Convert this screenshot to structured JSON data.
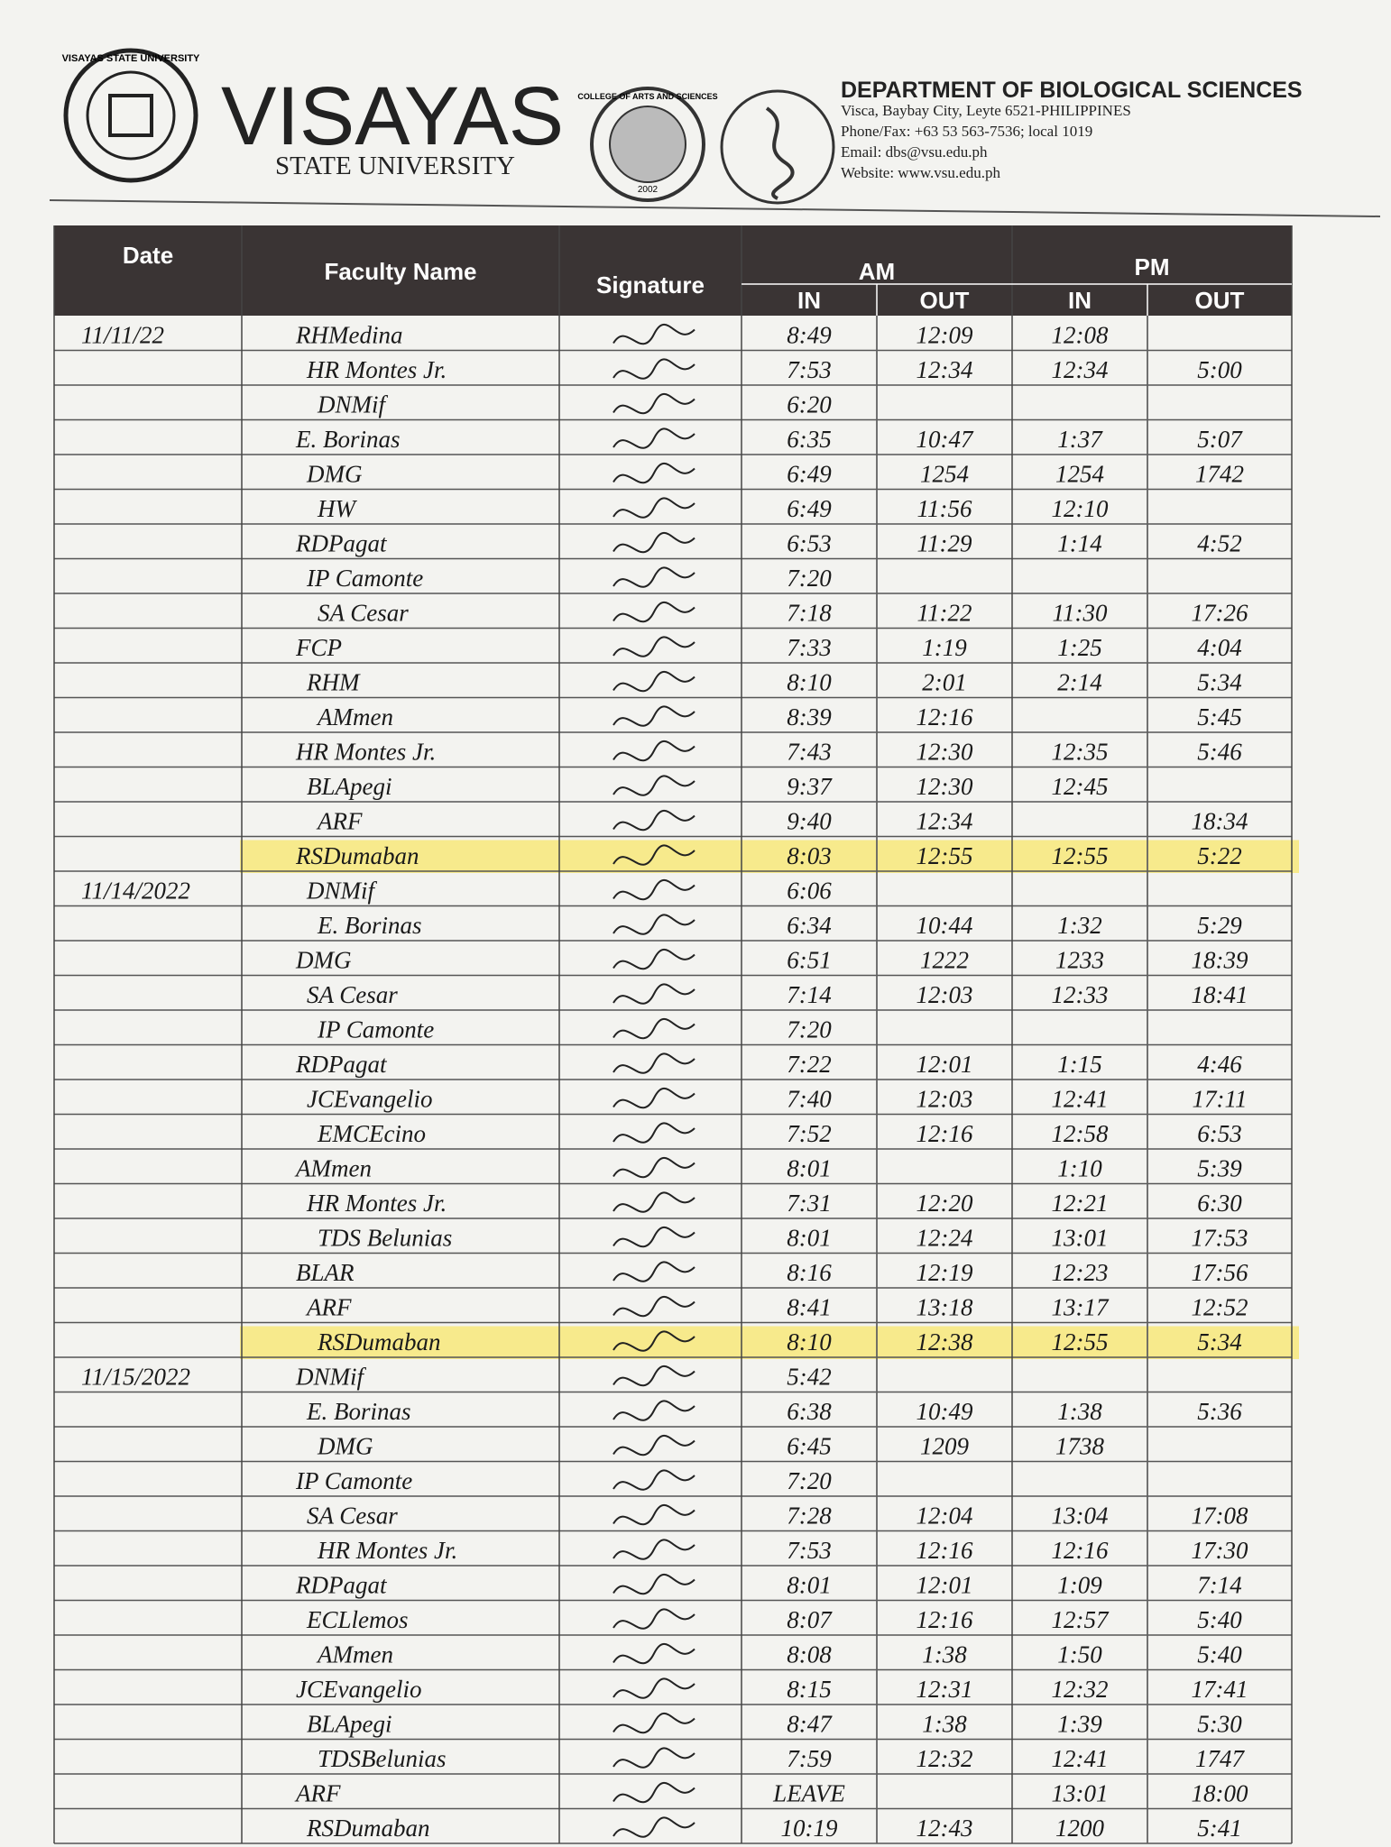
{
  "header": {
    "seal_text": "VISAYAS STATE UNIVERSITY",
    "university": "VISAYAS",
    "university_sub": "STATE UNIVERSITY",
    "college_seal": "COLLEGE OF ARTS AND SCIENCES",
    "college_year": "2002",
    "department": "DEPARTMENT OF BIOLOGICAL SCIENCES",
    "address": "Visca, Baybay City, Leyte 6521-PHILIPPINES",
    "phone": "Phone/Fax: +63 53  563-7536; local 1019",
    "email": "Email: dbs@vsu.edu.ph",
    "website": "Website: www.vsu.edu.ph"
  },
  "table": {
    "columns": {
      "date": "Date",
      "name": "Faculty Name",
      "signature": "Signature",
      "am": "AM",
      "pm": "PM",
      "am_in": "IN",
      "am_out": "OUT",
      "pm_in": "IN",
      "pm_out": "OUT"
    },
    "groups": [
      {
        "date": "11/11/22",
        "rows": [
          {
            "name": "RHMedina",
            "am_in": "8:49",
            "am_out": "12:09",
            "pm_in": "12:08"
          },
          {
            "name": "HR Montes Jr.",
            "am_in": "7:53",
            "am_out": "12:34",
            "pm_in": "12:34",
            "pm_out": "5:00"
          },
          {
            "name": "DNMif",
            "am_in": "6:20"
          },
          {
            "name": "E. Borinas",
            "am_in": "6:35",
            "am_out": "10:47",
            "pm_in": "1:37",
            "pm_out": "5:07"
          },
          {
            "name": "DMG",
            "am_in": "6:49",
            "am_out": "1254",
            "pm_in": "1254",
            "pm_out": "1742"
          },
          {
            "name": "HW",
            "am_in": "6:49",
            "am_out": "11:56",
            "pm_in": "12:10"
          },
          {
            "name": "RDPagat",
            "am_in": "6:53",
            "am_out": "11:29",
            "pm_in": "1:14",
            "pm_out": "4:52"
          },
          {
            "name": "IP Camonte",
            "am_in": "7:20"
          },
          {
            "name": "SA Cesar",
            "am_in": "7:18",
            "am_out": "11:22",
            "pm_in": "11:30",
            "pm_out": "17:26"
          },
          {
            "name": "FCP",
            "am_in": "7:33",
            "am_out": "1:19",
            "pm_in": "1:25",
            "pm_out": "4:04"
          },
          {
            "name": "RHM",
            "am_in": "8:10",
            "am_out": "2:01",
            "pm_in": "2:14",
            "pm_out": "5:34"
          },
          {
            "name": "AMmen",
            "am_in": "8:39",
            "am_out": "12:16",
            "pm_out": "5:45"
          },
          {
            "name": "HR Montes Jr.",
            "am_in": "7:43",
            "am_out": "12:30",
            "pm_in": "12:35",
            "pm_out": "5:46"
          },
          {
            "name": "BLApegi",
            "am_in": "9:37",
            "am_out": "12:30",
            "pm_in": "12:45"
          },
          {
            "name": "ARF",
            "am_in": "9:40",
            "am_out": "12:34",
            "pm_out": "18:34"
          },
          {
            "name": "RSDumaban",
            "am_in": "8:03",
            "am_out": "12:55",
            "pm_in": "12:55",
            "pm_out": "5:22",
            "highlighted": true
          }
        ]
      },
      {
        "date": "11/14/2022",
        "rows": [
          {
            "name": "DNMif",
            "am_in": "6:06"
          },
          {
            "name": "E. Borinas",
            "am_in": "6:34",
            "am_out": "10:44",
            "pm_in": "1:32",
            "pm_out": "5:29"
          },
          {
            "name": "DMG",
            "am_in": "6:51",
            "am_out": "1222",
            "pm_in": "1233",
            "pm_out": "18:39"
          },
          {
            "name": "SA Cesar",
            "am_in": "7:14",
            "am_out": "12:03",
            "pm_in": "12:33",
            "pm_out": "18:41"
          },
          {
            "name": "IP Camonte",
            "am_in": "7:20"
          },
          {
            "name": "RDPagat",
            "am_in": "7:22",
            "am_out": "12:01",
            "pm_in": "1:15",
            "pm_out": "4:46"
          },
          {
            "name": "JCEvangelio",
            "am_in": "7:40",
            "am_out": "12:03",
            "pm_in": "12:41",
            "pm_out": "17:11"
          },
          {
            "name": "EMCEcino",
            "am_in": "7:52",
            "am_out": "12:16",
            "pm_in": "12:58",
            "pm_out": "6:53"
          },
          {
            "name": "AMmen",
            "am_in": "8:01",
            "pm_in": "1:10",
            "pm_out": "5:39"
          },
          {
            "name": "HR Montes Jr.",
            "am_in": "7:31",
            "am_out": "12:20",
            "pm_in": "12:21",
            "pm_out": "6:30"
          },
          {
            "name": "TDS Belunias",
            "am_in": "8:01",
            "am_out": "12:24",
            "pm_in": "13:01",
            "pm_out": "17:53"
          },
          {
            "name": "BLAR",
            "am_in": "8:16",
            "am_out": "12:19",
            "pm_in": "12:23",
            "pm_out": "17:56"
          },
          {
            "name": "ARF",
            "am_in": "8:41",
            "am_out": "13:18",
            "pm_in": "13:17",
            "pm_out": "12:52"
          },
          {
            "name": "RSDumaban",
            "am_in": "8:10",
            "am_out": "12:38",
            "pm_in": "12:55",
            "pm_out": "5:34",
            "highlighted": true
          }
        ]
      },
      {
        "date": "11/15/2022",
        "rows": [
          {
            "name": "DNMif",
            "am_in": "5:42"
          },
          {
            "name": "E. Borinas",
            "am_in": "6:38",
            "am_out": "10:49",
            "pm_in": "1:38",
            "pm_out": "5:36"
          },
          {
            "name": "DMG",
            "am_in": "6:45",
            "am_out": "1209",
            "pm_in": "1738"
          },
          {
            "name": "IP Camonte",
            "am_in": "7:20"
          },
          {
            "name": "SA Cesar",
            "am_in": "7:28",
            "am_out": "12:04",
            "pm_in": "13:04",
            "pm_out": "17:08"
          },
          {
            "name": "HR Montes Jr.",
            "am_in": "7:53",
            "am_out": "12:16",
            "pm_in": "12:16",
            "pm_out": "17:30"
          },
          {
            "name": "RDPagat",
            "am_in": "8:01",
            "am_out": "12:01",
            "pm_in": "1:09",
            "pm_out": "7:14"
          },
          {
            "name": "ECLlemos",
            "am_in": "8:07",
            "am_out": "12:16",
            "pm_in": "12:57",
            "pm_out": "5:40"
          },
          {
            "name": "AMmen",
            "am_in": "8:08",
            "am_out": "1:38",
            "pm_in": "1:50",
            "pm_out": "5:40"
          },
          {
            "name": "JCEvangelio",
            "am_in": "8:15",
            "am_out": "12:31",
            "pm_in": "12:32",
            "pm_out": "17:41"
          },
          {
            "name": "BLApegi",
            "am_in": "8:47",
            "am_out": "1:38",
            "pm_in": "1:39",
            "pm_out": "5:30"
          },
          {
            "name": "TDSBelunias",
            "am_in": "7:59",
            "am_out": "12:32",
            "pm_in": "12:41",
            "pm_out": "1747"
          },
          {
            "name": "ARF",
            "am_in": "LEAVE",
            "pm_in": "13:01",
            "pm_out": "18:00"
          },
          {
            "name": "RSDumaban",
            "am_in": "10:19",
            "am_out": "12:43",
            "pm_in": "1200",
            "pm_out": "5:41"
          }
        ]
      }
    ]
  }
}
